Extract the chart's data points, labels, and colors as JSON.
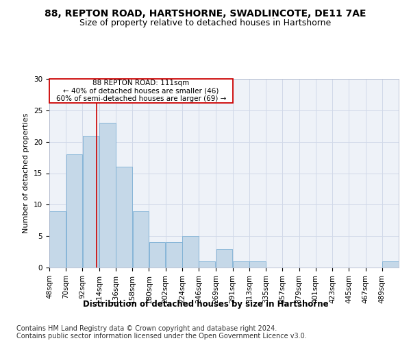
{
  "title1": "88, REPTON ROAD, HARTSHORNE, SWADLINCOTE, DE11 7AE",
  "title2": "Size of property relative to detached houses in Hartshorne",
  "xlabel": "Distribution of detached houses by size in Hartshorne",
  "ylabel": "Number of detached properties",
  "footer1": "Contains HM Land Registry data © Crown copyright and database right 2024.",
  "footer2": "Contains public sector information licensed under the Open Government Licence v3.0.",
  "annotation_line1": "88 REPTON ROAD: 111sqm",
  "annotation_line2": "← 40% of detached houses are smaller (46)",
  "annotation_line3": "60% of semi-detached houses are larger (69) →",
  "property_sqm": 111,
  "bin_edges": [
    48,
    70,
    92,
    114,
    136,
    158,
    180,
    202,
    224,
    246,
    269,
    291,
    313,
    335,
    357,
    379,
    401,
    423,
    445,
    467,
    489
  ],
  "bar_heights": [
    9,
    18,
    21,
    23,
    16,
    9,
    4,
    4,
    5,
    1,
    3,
    1,
    1,
    0,
    0,
    0,
    0,
    0,
    0,
    0,
    1
  ],
  "bar_color": "#c5d8e8",
  "bar_edgecolor": "#7bafd4",
  "redline_color": "#cc0000",
  "bg_color": "#eef2f8",
  "grid_color": "#d0d8e8",
  "ylim": [
    0,
    30
  ],
  "yticks": [
    0,
    5,
    10,
    15,
    20,
    25,
    30
  ],
  "title1_fontsize": 10,
  "title2_fontsize": 9,
  "xlabel_fontsize": 8.5,
  "ylabel_fontsize": 8,
  "tick_fontsize": 7.5,
  "annot_fontsize": 7.5,
  "footer_fontsize": 7
}
